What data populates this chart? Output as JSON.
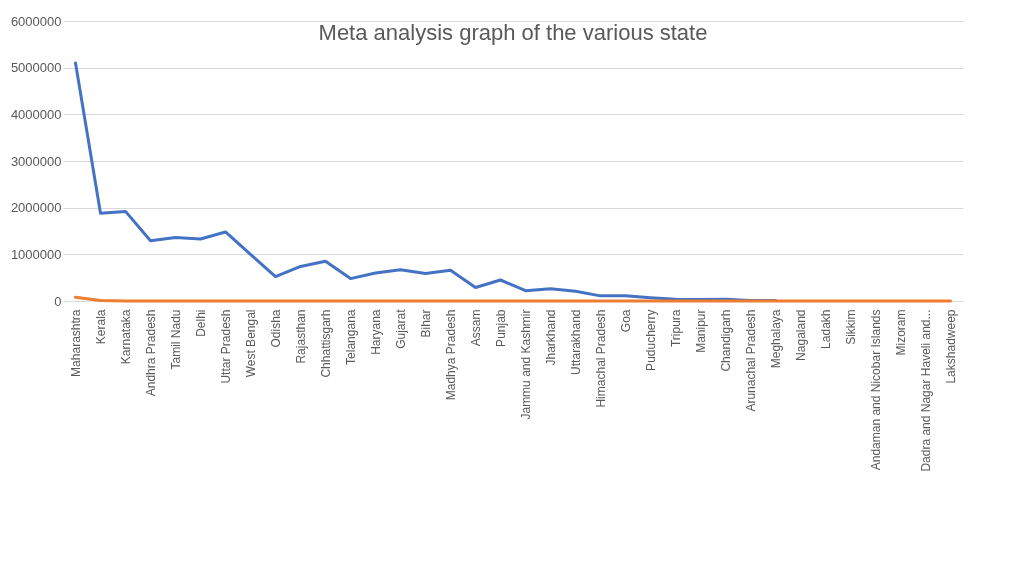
{
  "chart_data": {
    "type": "line",
    "title": "Meta analysis graph of the various state",
    "categories": [
      "Maharashtra",
      "Kerala",
      "Karnataka",
      "Andhra Pradesh",
      "Tamil Nadu",
      "Delhi",
      "Uttar Pradesh",
      "West Bengal",
      "Odisha",
      "Rajasthan",
      "Chhattisgarh",
      "Telangana",
      "Haryana",
      "Gujarat",
      "Bihar",
      "Madhya Pradesh",
      "Assam",
      "Punjab",
      "Jammu and Kashmir",
      "Jharkhand",
      "Uttarakhand",
      "Himachal Pradesh",
      "Goa",
      "Puducherry",
      "Tripura",
      "Manipur",
      "Chandigarh",
      "Arunachal Pradesh",
      "Meghalaya",
      "Nagaland",
      "Ladakh",
      "Sikkim",
      "Andaman and Nicobar Islands",
      "Mizoram",
      "Dadra and Nagar Haveli and...",
      "Lakshadweep"
    ],
    "series": [
      {
        "color": "#4472c4",
        "values": [
          5100000,
          1880000,
          1920000,
          1290000,
          1360000,
          1330000,
          1480000,
          1000000,
          520000,
          740000,
          850000,
          480000,
          600000,
          670000,
          590000,
          660000,
          290000,
          450000,
          220000,
          260000,
          210000,
          110000,
          110000,
          70000,
          40000,
          30000,
          40000,
          10000,
          10000,
          null,
          null,
          null,
          null,
          null,
          null,
          null
        ]
      },
      {
        "color": "#ed7d31",
        "values": [
          80000,
          10000,
          0,
          0,
          0,
          0,
          0,
          0,
          0,
          0,
          0,
          0,
          0,
          0,
          0,
          0,
          0,
          0,
          0,
          0,
          0,
          0,
          0,
          0,
          0,
          0,
          0,
          0,
          0,
          0,
          0,
          0,
          0,
          0,
          0,
          0
        ]
      }
    ],
    "ylim": [
      0,
      6000000
    ],
    "yticks": [
      0,
      1000000,
      2000000,
      3000000,
      4000000,
      5000000,
      6000000
    ],
    "grid": "y",
    "marker": "none",
    "line_style": "solid"
  }
}
